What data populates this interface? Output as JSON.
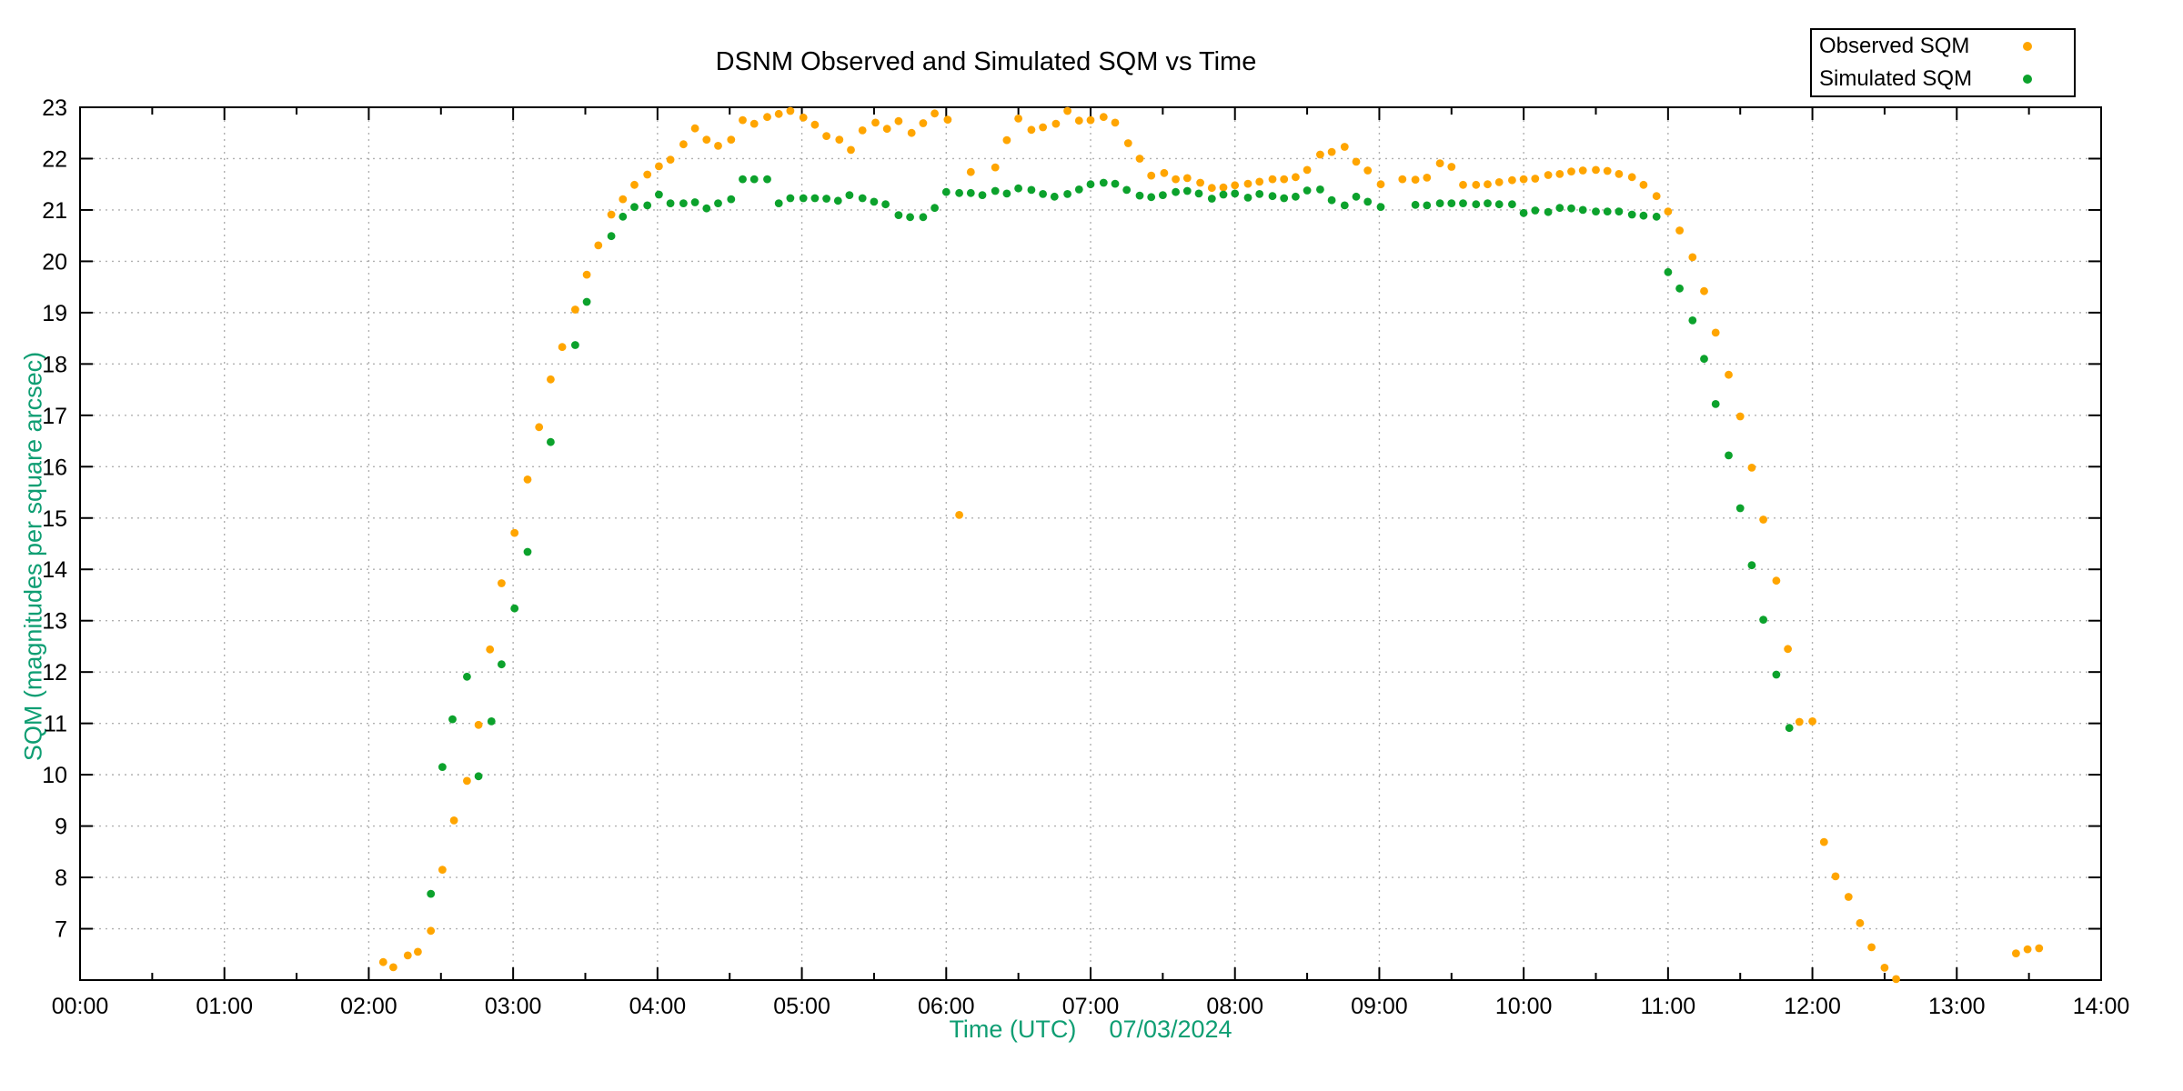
{
  "title": "DSNM Observed and Simulated SQM vs Time",
  "legend": {
    "position": "top-right",
    "items": [
      {
        "label": "Observed SQM",
        "color": "#ffa500"
      },
      {
        "label": "Simulated SQM",
        "color": "#0ca22c"
      }
    ]
  },
  "axes": {
    "x_title_prefix": "Time (UTC)",
    "x_title_date": "07/03/2024",
    "y_title": "SQM (magnitudes per square arcsec)",
    "axis_title_color": "#0f9e73"
  },
  "chart_data": {
    "type": "scatter",
    "title": "DSNM Observed and Simulated SQM vs Time",
    "xlabel": "Time (UTC) 07/03/2024",
    "ylabel": "SQM (magnitudes per square arcsec)",
    "x_unit": "hours UTC (decimal)",
    "xlim": [
      0,
      14
    ],
    "ylim": [
      6,
      23
    ],
    "grid": true,
    "legend_position": "top-right",
    "x_ticks": [
      "00:00",
      "01:00",
      "02:00",
      "03:00",
      "04:00",
      "05:00",
      "06:00",
      "07:00",
      "08:00",
      "09:00",
      "10:00",
      "11:00",
      "12:00",
      "13:00",
      "14:00"
    ],
    "x_minor_tick_interval": 0.5,
    "y_ticks": [
      "7",
      "8",
      "9",
      "10",
      "11",
      "12",
      "13",
      "14",
      "15",
      "16",
      "17",
      "18",
      "19",
      "20",
      "21",
      "22",
      "23"
    ],
    "y_tick_start": 7,
    "series": [
      {
        "name": "Observed SQM",
        "slug": "observed-sqm",
        "color": "#ffa500",
        "points": [
          [
            2.1,
            6.35
          ],
          [
            2.17,
            6.25
          ],
          [
            2.27,
            6.48
          ],
          [
            2.34,
            6.55
          ],
          [
            2.43,
            6.96
          ],
          [
            2.51,
            8.15
          ],
          [
            2.59,
            9.11
          ],
          [
            2.68,
            9.88
          ],
          [
            2.76,
            10.97
          ],
          [
            2.84,
            12.44
          ],
          [
            2.92,
            13.73
          ],
          [
            3.01,
            14.71
          ],
          [
            3.1,
            15.75
          ],
          [
            3.18,
            16.77
          ],
          [
            3.26,
            17.7
          ],
          [
            3.34,
            18.33
          ],
          [
            3.43,
            19.06
          ],
          [
            3.51,
            19.74
          ],
          [
            3.59,
            20.31
          ],
          [
            3.68,
            20.91
          ],
          [
            3.76,
            21.21
          ],
          [
            3.84,
            21.49
          ],
          [
            3.93,
            21.69
          ],
          [
            4.01,
            21.85
          ],
          [
            4.09,
            21.98
          ],
          [
            4.18,
            22.28
          ],
          [
            4.26,
            22.59
          ],
          [
            4.34,
            22.37
          ],
          [
            4.42,
            22.25
          ],
          [
            4.51,
            22.37
          ],
          [
            4.59,
            22.75
          ],
          [
            4.67,
            22.68
          ],
          [
            4.76,
            22.81
          ],
          [
            4.84,
            22.87
          ],
          [
            4.92,
            22.93
          ],
          [
            5.01,
            22.8
          ],
          [
            5.09,
            22.66
          ],
          [
            5.17,
            22.44
          ],
          [
            5.26,
            22.37
          ],
          [
            5.34,
            22.17
          ],
          [
            5.42,
            22.55
          ],
          [
            5.51,
            22.7
          ],
          [
            5.59,
            22.58
          ],
          [
            5.67,
            22.73
          ],
          [
            5.76,
            22.5
          ],
          [
            5.84,
            22.69
          ],
          [
            5.92,
            22.88
          ],
          [
            6.01,
            22.76
          ],
          [
            6.09,
            15.06
          ],
          [
            6.17,
            21.74
          ],
          [
            6.34,
            21.83
          ],
          [
            6.42,
            22.36
          ],
          [
            6.5,
            22.78
          ],
          [
            6.59,
            22.56
          ],
          [
            6.67,
            22.61
          ],
          [
            6.76,
            22.68
          ],
          [
            6.84,
            22.93
          ],
          [
            6.92,
            22.74
          ],
          [
            7.0,
            22.75
          ],
          [
            7.09,
            22.81
          ],
          [
            7.17,
            22.7
          ],
          [
            7.26,
            22.3
          ],
          [
            7.34,
            22.0
          ],
          [
            7.42,
            21.67
          ],
          [
            7.51,
            21.72
          ],
          [
            7.59,
            21.6
          ],
          [
            7.67,
            21.62
          ],
          [
            7.76,
            21.53
          ],
          [
            7.84,
            21.43
          ],
          [
            7.92,
            21.44
          ],
          [
            8.0,
            21.48
          ],
          [
            8.09,
            21.51
          ],
          [
            8.17,
            21.55
          ],
          [
            8.26,
            21.6
          ],
          [
            8.34,
            21.6
          ],
          [
            8.42,
            21.64
          ],
          [
            8.5,
            21.78
          ],
          [
            8.59,
            22.08
          ],
          [
            8.67,
            22.13
          ],
          [
            8.76,
            22.23
          ],
          [
            8.84,
            21.94
          ],
          [
            8.92,
            21.77
          ],
          [
            9.01,
            21.5
          ],
          [
            9.16,
            21.6
          ],
          [
            9.25,
            21.59
          ],
          [
            9.33,
            21.63
          ],
          [
            9.42,
            21.91
          ],
          [
            9.5,
            21.84
          ],
          [
            9.58,
            21.49
          ],
          [
            9.67,
            21.49
          ],
          [
            9.75,
            21.5
          ],
          [
            9.83,
            21.54
          ],
          [
            9.92,
            21.58
          ],
          [
            10.0,
            21.6
          ],
          [
            10.08,
            21.61
          ],
          [
            10.17,
            21.68
          ],
          [
            10.25,
            21.7
          ],
          [
            10.33,
            21.75
          ],
          [
            10.41,
            21.77
          ],
          [
            10.5,
            21.78
          ],
          [
            10.58,
            21.76
          ],
          [
            10.66,
            21.7
          ],
          [
            10.75,
            21.64
          ],
          [
            10.83,
            21.49
          ],
          [
            10.92,
            21.27
          ],
          [
            11.0,
            20.97
          ],
          [
            11.08,
            20.6
          ],
          [
            11.17,
            20.08
          ],
          [
            11.25,
            19.42
          ],
          [
            11.33,
            18.61
          ],
          [
            11.42,
            17.79
          ],
          [
            11.5,
            16.98
          ],
          [
            11.58,
            15.98
          ],
          [
            11.66,
            14.97
          ],
          [
            11.75,
            13.78
          ],
          [
            11.83,
            12.45
          ],
          [
            11.91,
            11.03
          ],
          [
            12.0,
            11.04
          ],
          [
            12.08,
            8.69
          ],
          [
            12.16,
            8.02
          ],
          [
            12.25,
            7.62
          ],
          [
            12.33,
            7.11
          ],
          [
            12.41,
            6.64
          ],
          [
            12.5,
            6.24
          ],
          [
            12.58,
            6.02
          ],
          [
            13.41,
            6.52
          ],
          [
            13.49,
            6.6
          ],
          [
            13.57,
            6.62
          ]
        ]
      },
      {
        "name": "Simulated SQM",
        "slug": "simulated-sqm",
        "color": "#0ca22c",
        "points": [
          [
            2.43,
            7.68
          ],
          [
            2.51,
            10.15
          ],
          [
            2.58,
            11.08
          ],
          [
            2.68,
            11.91
          ],
          [
            2.76,
            9.97
          ],
          [
            2.85,
            11.04
          ],
          [
            2.92,
            12.15
          ],
          [
            3.01,
            13.24
          ],
          [
            3.1,
            14.34
          ],
          [
            3.26,
            16.48
          ],
          [
            3.43,
            18.37
          ],
          [
            3.51,
            19.21
          ],
          [
            3.68,
            20.49
          ],
          [
            3.76,
            20.87
          ],
          [
            3.84,
            21.06
          ],
          [
            3.93,
            21.09
          ],
          [
            4.01,
            21.3
          ],
          [
            4.09,
            21.13
          ],
          [
            4.18,
            21.13
          ],
          [
            4.26,
            21.15
          ],
          [
            4.34,
            21.03
          ],
          [
            4.42,
            21.13
          ],
          [
            4.51,
            21.21
          ],
          [
            4.59,
            21.6
          ],
          [
            4.67,
            21.6
          ],
          [
            4.76,
            21.6
          ],
          [
            4.84,
            21.13
          ],
          [
            4.92,
            21.23
          ],
          [
            5.01,
            21.23
          ],
          [
            5.09,
            21.23
          ],
          [
            5.17,
            21.22
          ],
          [
            5.25,
            21.18
          ],
          [
            5.33,
            21.29
          ],
          [
            5.42,
            21.23
          ],
          [
            5.5,
            21.16
          ],
          [
            5.58,
            21.11
          ],
          [
            5.67,
            20.9
          ],
          [
            5.75,
            20.86
          ],
          [
            5.84,
            20.86
          ],
          [
            5.92,
            21.04
          ],
          [
            6.0,
            21.35
          ],
          [
            6.09,
            21.33
          ],
          [
            6.17,
            21.33
          ],
          [
            6.25,
            21.29
          ],
          [
            6.34,
            21.37
          ],
          [
            6.42,
            21.32
          ],
          [
            6.5,
            21.42
          ],
          [
            6.59,
            21.39
          ],
          [
            6.67,
            21.31
          ],
          [
            6.75,
            21.26
          ],
          [
            6.84,
            21.31
          ],
          [
            6.92,
            21.4
          ],
          [
            7.0,
            21.5
          ],
          [
            7.09,
            21.53
          ],
          [
            7.17,
            21.51
          ],
          [
            7.25,
            21.39
          ],
          [
            7.34,
            21.28
          ],
          [
            7.42,
            21.25
          ],
          [
            7.5,
            21.29
          ],
          [
            7.59,
            21.35
          ],
          [
            7.67,
            21.37
          ],
          [
            7.75,
            21.32
          ],
          [
            7.84,
            21.22
          ],
          [
            7.92,
            21.3
          ],
          [
            8.0,
            21.32
          ],
          [
            8.09,
            21.24
          ],
          [
            8.17,
            21.31
          ],
          [
            8.26,
            21.27
          ],
          [
            8.34,
            21.23
          ],
          [
            8.42,
            21.26
          ],
          [
            8.5,
            21.38
          ],
          [
            8.59,
            21.4
          ],
          [
            8.67,
            21.19
          ],
          [
            8.76,
            21.09
          ],
          [
            8.84,
            21.26
          ],
          [
            8.92,
            21.16
          ],
          [
            9.01,
            21.06
          ],
          [
            9.25,
            21.1
          ],
          [
            9.33,
            21.09
          ],
          [
            9.42,
            21.13
          ],
          [
            9.5,
            21.13
          ],
          [
            9.58,
            21.13
          ],
          [
            9.67,
            21.11
          ],
          [
            9.75,
            21.13
          ],
          [
            9.83,
            21.11
          ],
          [
            9.92,
            21.11
          ],
          [
            10.0,
            20.94
          ],
          [
            10.08,
            20.99
          ],
          [
            10.17,
            20.96
          ],
          [
            10.25,
            21.04
          ],
          [
            10.33,
            21.03
          ],
          [
            10.41,
            21.0
          ],
          [
            10.5,
            20.97
          ],
          [
            10.58,
            20.97
          ],
          [
            10.66,
            20.97
          ],
          [
            10.75,
            20.91
          ],
          [
            10.83,
            20.89
          ],
          [
            10.92,
            20.87
          ],
          [
            11.0,
            19.79
          ],
          [
            11.08,
            19.47
          ],
          [
            11.17,
            18.85
          ],
          [
            11.25,
            18.1
          ],
          [
            11.33,
            17.22
          ],
          [
            11.42,
            16.22
          ],
          [
            11.5,
            15.19
          ],
          [
            11.58,
            14.08
          ],
          [
            11.66,
            13.02
          ],
          [
            11.75,
            11.95
          ],
          [
            11.84,
            10.91
          ]
        ]
      }
    ],
    "plot_style": {
      "grid_color": "#b0b0b0",
      "border_color": "#000000",
      "marker_radius": 4.4
    }
  }
}
